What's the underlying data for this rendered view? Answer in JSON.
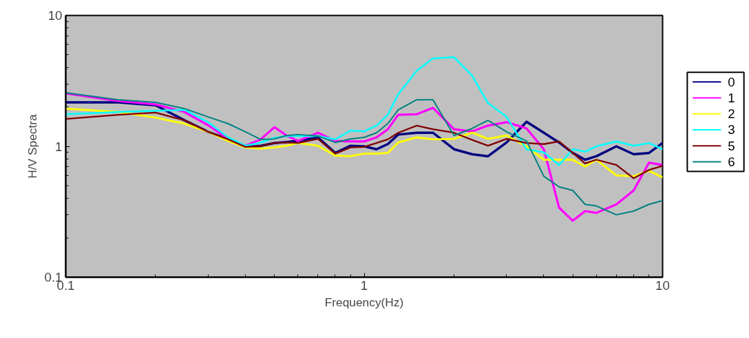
{
  "chart_data": {
    "type": "line",
    "xlabel": "Frequency(Hz)",
    "ylabel": "H/V Spectra",
    "log": "xy",
    "grid": false,
    "legend": "right",
    "marker": "none",
    "line_style": "solid",
    "xlim": [
      0.1,
      10
    ],
    "ylim": [
      0.1,
      10
    ],
    "xticks": [
      0.1,
      {
        "value": 0.2,
        "label": null
      },
      {
        "value": 0.3,
        "label": null
      },
      {
        "value": 0.4,
        "label": null
      },
      {
        "value": 0.5,
        "label": null
      },
      {
        "value": 0.6,
        "label": null
      },
      {
        "value": 0.7,
        "label": null
      },
      {
        "value": 0.8,
        "label": null
      },
      {
        "value": 0.9,
        "label": null
      },
      1,
      {
        "value": 2,
        "label": null
      },
      {
        "value": 3,
        "label": null
      },
      {
        "value": 4,
        "label": null
      },
      {
        "value": 5,
        "label": null
      },
      {
        "value": 6,
        "label": null
      },
      {
        "value": 7,
        "label": null
      },
      {
        "value": 8,
        "label": null
      },
      {
        "value": 9,
        "label": null
      },
      10
    ],
    "yticks": [
      0.1,
      {
        "value": 0.2,
        "label": null
      },
      {
        "value": 0.3,
        "label": null
      },
      {
        "value": 0.4,
        "label": null
      },
      {
        "value": 0.5,
        "label": null
      },
      {
        "value": 0.6,
        "label": null
      },
      {
        "value": 0.7,
        "label": null
      },
      {
        "value": 0.8,
        "label": null
      },
      {
        "value": 0.9,
        "label": null
      },
      1,
      {
        "value": 2,
        "label": null
      },
      {
        "value": 3,
        "label": null
      },
      {
        "value": 4,
        "label": null
      },
      {
        "value": 5,
        "label": null
      },
      {
        "value": 6,
        "label": null
      },
      {
        "value": 7,
        "label": null
      },
      {
        "value": 8,
        "label": null
      },
      {
        "value": 9,
        "label": null
      },
      10
    ],
    "x": [
      0.1,
      0.15,
      0.2,
      0.25,
      0.3,
      0.35,
      0.4,
      0.45,
      0.5,
      0.55,
      0.6,
      0.7,
      0.8,
      0.9,
      1.0,
      1.1,
      1.2,
      1.3,
      1.5,
      1.7,
      2.0,
      2.3,
      2.6,
      3.0,
      3.5,
      4.0,
      4.5,
      5.0,
      5.5,
      6,
      7,
      8,
      9,
      10
    ],
    "series": [
      {
        "name": "0",
        "color": "#000080",
        "values": [
          2.17,
          2.17,
          2.06,
          1.58,
          1.29,
          1.13,
          0.99,
          1.01,
          1.06,
          1.08,
          1.1,
          1.17,
          0.89,
          1.01,
          1.0,
          0.95,
          1.04,
          1.23,
          1.27,
          1.27,
          0.95,
          0.87,
          0.84,
          1.07,
          1.54,
          1.27,
          1.07,
          0.89,
          0.79,
          0.84,
          1.0,
          0.87,
          0.89,
          1.06
        ]
      },
      {
        "name": "1",
        "color": "#ff00ff",
        "values": [
          2.54,
          2.22,
          2.09,
          1.83,
          1.45,
          1.14,
          1.01,
          1.13,
          1.4,
          1.21,
          1.1,
          1.27,
          1.1,
          1.09,
          1.09,
          1.17,
          1.35,
          1.74,
          1.76,
          1.97,
          1.35,
          1.3,
          1.44,
          1.53,
          1.37,
          0.95,
          0.34,
          0.27,
          0.32,
          0.31,
          0.36,
          0.46,
          0.75,
          0.72
        ]
      },
      {
        "name": "2",
        "color": "#ffff00",
        "values": [
          1.94,
          1.83,
          1.66,
          1.49,
          1.29,
          1.1,
          0.98,
          0.96,
          0.98,
          1.01,
          1.06,
          1.01,
          0.85,
          0.84,
          0.88,
          0.88,
          0.89,
          1.07,
          1.17,
          1.13,
          1.14,
          1.27,
          1.14,
          1.21,
          1.0,
          0.79,
          0.79,
          0.79,
          0.7,
          0.79,
          0.6,
          0.59,
          0.65,
          0.58
        ]
      },
      {
        "name": "3",
        "color": "#00ffff",
        "values": [
          1.76,
          1.83,
          1.87,
          1.9,
          1.53,
          1.17,
          1.01,
          1.07,
          1.16,
          1.2,
          1.2,
          1.2,
          1.13,
          1.32,
          1.3,
          1.44,
          1.74,
          2.5,
          3.78,
          4.7,
          4.8,
          3.47,
          2.14,
          1.68,
          0.95,
          0.9,
          0.72,
          0.95,
          0.91,
          1.0,
          1.09,
          1.01,
          1.06,
          0.95
        ]
      },
      {
        "name": "5",
        "color": "#800000",
        "values": [
          1.62,
          1.74,
          1.81,
          1.58,
          1.29,
          1.13,
          0.99,
          1.0,
          1.06,
          1.07,
          1.06,
          1.14,
          0.88,
          0.98,
          0.99,
          1.06,
          1.13,
          1.27,
          1.44,
          1.35,
          1.27,
          1.12,
          1.01,
          1.14,
          1.06,
          1.04,
          1.09,
          0.89,
          0.74,
          0.79,
          0.72,
          0.57,
          0.66,
          0.71
        ]
      },
      {
        "name": "6",
        "color": "#008080",
        "values": [
          2.57,
          2.27,
          2.17,
          1.94,
          1.68,
          1.49,
          1.29,
          1.13,
          1.14,
          1.21,
          1.23,
          1.2,
          1.07,
          1.14,
          1.17,
          1.27,
          1.49,
          1.9,
          2.27,
          2.27,
          1.21,
          1.37,
          1.58,
          1.29,
          1.1,
          0.59,
          0.49,
          0.46,
          0.36,
          0.35,
          0.3,
          0.32,
          0.36,
          0.385
        ]
      }
    ]
  }
}
